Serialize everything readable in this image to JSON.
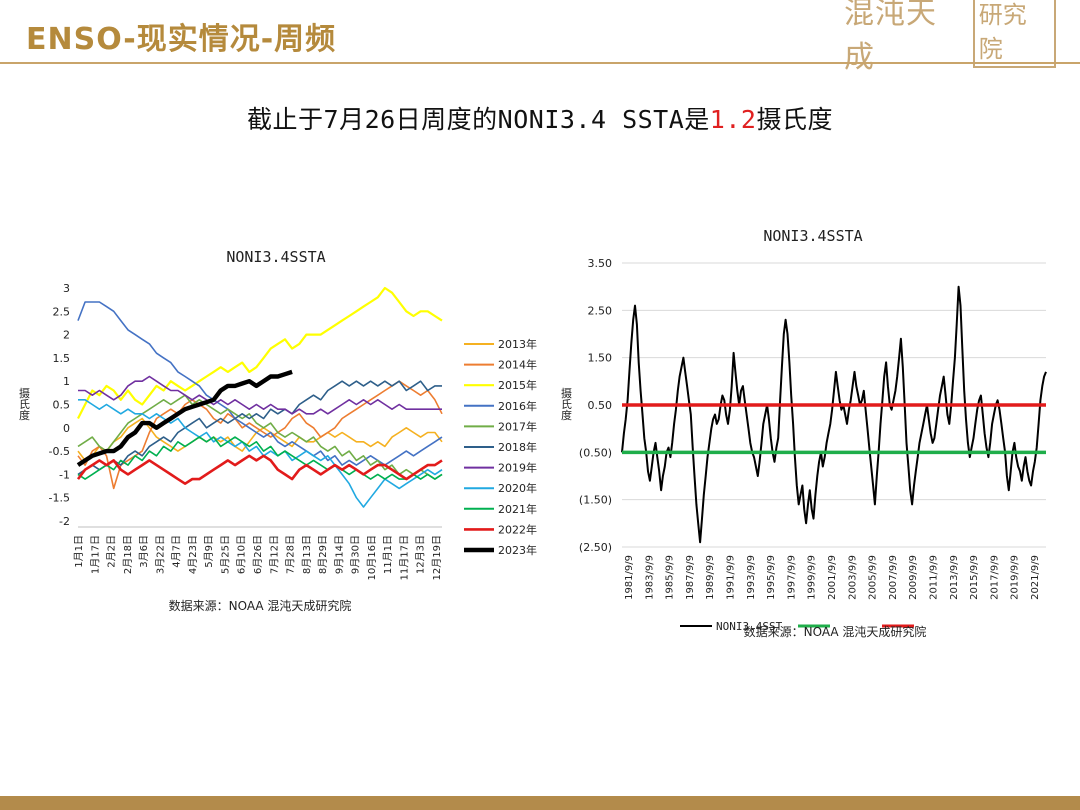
{
  "header": {
    "title": "ENSO-现实情况-周频",
    "logo_text": "混沌天成",
    "logo_box": "研究院",
    "colors": {
      "gold": "#b58a3c",
      "line": "#c9a46a"
    }
  },
  "headline": {
    "before": "截止于7月26日周度的NONI3.4 SSTA是",
    "value": "1.2",
    "after": "摄氏度"
  },
  "chart_data": [
    {
      "type": "line",
      "title": "NONI3.4SSTA",
      "ylabel": "摄氏度",
      "ylim": [
        -2,
        3
      ],
      "yticks": [
        "3",
        "2.5",
        "2",
        "1.5",
        "1",
        "0.5",
        "0",
        "-0.5",
        "-1",
        "-1.5",
        "-2"
      ],
      "xticks": [
        "1月1日",
        "1月17日",
        "2月2日",
        "2月18日",
        "3月6日",
        "3月22日",
        "4月7日",
        "4月23日",
        "5月9日",
        "5月25日",
        "6月10日",
        "6月26日",
        "7月12日",
        "7月28日",
        "8月13日",
        "8月29日",
        "9月14日",
        "9月30日",
        "10月16日",
        "11月1日",
        "11月17日",
        "12月3日",
        "12月19日"
      ],
      "source": "数据来源：NOAA 混沌天成研究院",
      "legend_position": "right",
      "grid": false,
      "series": [
        {
          "name": "2013年",
          "color": "#f5b121",
          "width": 1.6,
          "values": [
            -0.5,
            -0.7,
            -0.6,
            -0.4,
            -0.5,
            -0.3,
            -0.2,
            0,
            0.1,
            0.2,
            0,
            -0.2,
            -0.3,
            -0.4,
            -0.5,
            -0.4,
            -0.3,
            -0.2,
            -0.3,
            -0.2,
            -0.3,
            -0.2,
            -0.4,
            -0.5,
            -0.3,
            -0.1,
            0,
            -0.1,
            -0.2,
            -0.3,
            -0.4,
            -0.2,
            -0.3,
            -0.3,
            -0.2,
            -0.1,
            -0.2,
            -0.1,
            -0.2,
            -0.3,
            -0.3,
            -0.4,
            -0.3,
            -0.4,
            -0.2,
            -0.1,
            0,
            -0.1,
            -0.2,
            -0.1,
            -0.1,
            -0.3
          ]
        },
        {
          "name": "2014年",
          "color": "#ed7d31",
          "width": 1.6,
          "values": [
            -0.6,
            -0.8,
            -0.5,
            -0.4,
            -0.6,
            -1.3,
            -0.8,
            -0.7,
            -0.6,
            -0.5,
            -0.1,
            0.2,
            0.3,
            0.4,
            0.3,
            0.5,
            0.6,
            0.5,
            0.4,
            0.2,
            0.1,
            0.3,
            0.2,
            0,
            0.1,
            0,
            -0.1,
            -0.2,
            -0.1,
            0,
            0.2,
            0.3,
            0.1,
            0,
            -0.2,
            -0.1,
            0,
            0.2,
            0.3,
            0.4,
            0.5,
            0.6,
            0.7,
            0.8,
            0.9,
            1,
            0.9,
            0.8,
            0.7,
            0.8,
            0.6,
            0.3
          ]
        },
        {
          "name": "2015年",
          "color": "#ffff00",
          "width": 2.2,
          "values": [
            0.2,
            0.5,
            0.8,
            0.7,
            0.9,
            0.8,
            0.6,
            0.8,
            0.6,
            0.5,
            0.7,
            0.9,
            0.8,
            1,
            0.9,
            0.8,
            0.9,
            1,
            1.1,
            1.2,
            1.3,
            1.2,
            1.3,
            1.4,
            1.2,
            1.3,
            1.5,
            1.7,
            1.8,
            1.9,
            1.7,
            1.8,
            2,
            2,
            2,
            2.1,
            2.2,
            2.3,
            2.4,
            2.5,
            2.6,
            2.7,
            2.8,
            3,
            2.9,
            2.7,
            2.5,
            2.4,
            2.5,
            2.5,
            2.4,
            2.3
          ]
        },
        {
          "name": "2016年",
          "color": "#4472c4",
          "width": 1.6,
          "values": [
            2.3,
            2.7,
            2.7,
            2.7,
            2.6,
            2.5,
            2.3,
            2.1,
            2,
            1.9,
            1.8,
            1.6,
            1.5,
            1.4,
            1.2,
            1.1,
            1,
            0.9,
            0.7,
            0.6,
            0.5,
            0.4,
            0.2,
            0.1,
            0,
            -0.1,
            -0.2,
            -0.1,
            -0.3,
            -0.4,
            -0.3,
            -0.4,
            -0.5,
            -0.6,
            -0.5,
            -0.7,
            -0.6,
            -0.8,
            -0.7,
            -0.8,
            -0.7,
            -0.6,
            -0.7,
            -0.8,
            -0.7,
            -0.6,
            -0.5,
            -0.6,
            -0.5,
            -0.4,
            -0.3,
            -0.2
          ]
        },
        {
          "name": "2017年",
          "color": "#70ad47",
          "width": 1.6,
          "values": [
            -0.4,
            -0.3,
            -0.2,
            -0.4,
            -0.5,
            -0.3,
            -0.1,
            0.1,
            0.2,
            0.3,
            0.4,
            0.5,
            0.6,
            0.5,
            0.6,
            0.7,
            0.5,
            0.6,
            0.5,
            0.4,
            0.3,
            0.4,
            0.3,
            0.2,
            0.3,
            0.1,
            0,
            0.1,
            -0.1,
            -0.2,
            -0.1,
            -0.2,
            -0.3,
            -0.2,
            -0.4,
            -0.5,
            -0.4,
            -0.6,
            -0.5,
            -0.7,
            -0.6,
            -0.8,
            -0.7,
            -0.9,
            -0.8,
            -1,
            -0.9,
            -1,
            -0.9,
            -1,
            -1.1,
            -1
          ]
        },
        {
          "name": "2018年",
          "color": "#2e5f8a",
          "width": 1.6,
          "values": [
            -1,
            -0.9,
            -0.8,
            -0.9,
            -0.8,
            -0.7,
            -0.8,
            -0.6,
            -0.5,
            -0.6,
            -0.4,
            -0.3,
            -0.2,
            -0.3,
            -0.1,
            0,
            0.1,
            0.2,
            0,
            0.1,
            0.2,
            0.1,
            0.2,
            0.3,
            0.2,
            0.3,
            0.2,
            0.4,
            0.3,
            0.4,
            0.3,
            0.5,
            0.6,
            0.7,
            0.6,
            0.8,
            0.9,
            1,
            0.9,
            1,
            0.9,
            1,
            0.9,
            1,
            0.9,
            1,
            0.8,
            0.9,
            1,
            0.8,
            0.9,
            0.9
          ]
        },
        {
          "name": "2019年",
          "color": "#7030a0",
          "width": 1.6,
          "values": [
            0.8,
            0.8,
            0.7,
            0.8,
            0.7,
            0.6,
            0.7,
            0.9,
            1,
            1,
            1.1,
            1,
            0.9,
            0.8,
            0.8,
            0.7,
            0.6,
            0.7,
            0.6,
            0.5,
            0.6,
            0.5,
            0.6,
            0.5,
            0.4,
            0.5,
            0.4,
            0.5,
            0.4,
            0.4,
            0.3,
            0.4,
            0.3,
            0.3,
            0.4,
            0.3,
            0.4,
            0.5,
            0.6,
            0.5,
            0.6,
            0.5,
            0.6,
            0.5,
            0.4,
            0.5,
            0.4,
            0.4,
            0.4,
            0.4,
            0.4,
            0.4
          ]
        },
        {
          "name": "2020年",
          "color": "#21a9e1",
          "width": 1.6,
          "values": [
            0.6,
            0.6,
            0.5,
            0.4,
            0.5,
            0.4,
            0.3,
            0.4,
            0.3,
            0.3,
            0.2,
            0.3,
            0.2,
            0.1,
            0.2,
            0,
            -0.1,
            -0.2,
            -0.1,
            -0.3,
            -0.2,
            -0.3,
            -0.4,
            -0.3,
            -0.5,
            -0.4,
            -0.6,
            -0.5,
            -0.6,
            -0.5,
            -0.7,
            -0.6,
            -0.5,
            -0.6,
            -0.7,
            -0.6,
            -0.8,
            -1,
            -1.2,
            -1.5,
            -1.7,
            -1.5,
            -1.3,
            -1.1,
            -1.2,
            -1.3,
            -1.2,
            -1.1,
            -1,
            -0.9,
            -1,
            -0.9
          ]
        },
        {
          "name": "2021年",
          "color": "#00b050",
          "width": 1.6,
          "values": [
            -1,
            -1.1,
            -1,
            -0.9,
            -0.8,
            -0.9,
            -0.7,
            -0.8,
            -0.6,
            -0.7,
            -0.5,
            -0.6,
            -0.4,
            -0.5,
            -0.3,
            -0.4,
            -0.3,
            -0.2,
            -0.3,
            -0.2,
            -0.4,
            -0.3,
            -0.2,
            -0.3,
            -0.4,
            -0.3,
            -0.5,
            -0.4,
            -0.6,
            -0.5,
            -0.6,
            -0.7,
            -0.8,
            -0.7,
            -0.8,
            -0.9,
            -0.8,
            -0.9,
            -1,
            -0.9,
            -1,
            -1.1,
            -1,
            -1.1,
            -1,
            -1.1,
            -1.1,
            -1,
            -1.1,
            -1,
            -1.1,
            -1
          ]
        },
        {
          "name": "2022年",
          "color": "#e21b1b",
          "width": 2.6,
          "values": [
            -1.1,
            -0.9,
            -0.8,
            -0.7,
            -0.8,
            -0.7,
            -0.9,
            -1,
            -0.9,
            -0.8,
            -0.7,
            -0.8,
            -0.9,
            -1,
            -1.1,
            -1.2,
            -1.1,
            -1.1,
            -1,
            -0.9,
            -0.8,
            -0.7,
            -0.8,
            -0.7,
            -0.6,
            -0.7,
            -0.6,
            -0.7,
            -0.9,
            -1,
            -1.1,
            -0.9,
            -0.8,
            -0.9,
            -1,
            -0.9,
            -0.8,
            -0.9,
            -0.8,
            -0.9,
            -1,
            -0.9,
            -0.8,
            -0.8,
            -0.9,
            -1,
            -1.1,
            -1,
            -0.9,
            -0.8,
            -0.8,
            -0.7
          ]
        },
        {
          "name": "2023年",
          "color": "#000000",
          "width": 4.4,
          "values": [
            -0.8,
            -0.7,
            -0.6,
            -0.55,
            -0.5,
            -0.5,
            -0.4,
            -0.2,
            -0.1,
            0.1,
            0.1,
            0,
            0.1,
            0.2,
            0.3,
            0.4,
            0.45,
            0.5,
            0.55,
            0.6,
            0.8,
            0.9,
            0.9,
            0.95,
            1,
            0.9,
            1,
            1.1,
            1.1,
            1.15,
            1.2
          ]
        }
      ]
    },
    {
      "type": "line",
      "title": "NONI3.4SSTA",
      "ylabel": "摄氏度",
      "ylim": [
        -2.5,
        3.5
      ],
      "yticks": [
        "3.50",
        "2.50",
        "1.50",
        "0.50",
        "(0.50)",
        "(1.50)",
        "(2.50)"
      ],
      "xticks": [
        "1981/9/9",
        "1983/9/9",
        "1985/9/9",
        "1987/9/9",
        "1989/9/9",
        "1991/9/9",
        "1993/9/9",
        "1995/9/9",
        "1997/9/9",
        "1999/9/9",
        "2001/9/9",
        "2003/9/9",
        "2005/9/9",
        "2007/9/9",
        "2009/9/9",
        "2011/9/9",
        "2013/9/9",
        "2015/9/9",
        "2017/9/9",
        "2019/9/9",
        "2021/9/9"
      ],
      "source": "数据来源：NOAA 混沌天成研究院",
      "legend_position": "bottom",
      "grid": true,
      "el_nino": 0.5,
      "la_nina": -0.5,
      "series": [
        {
          "name": "NONI3.4SST",
          "color": "#000000",
          "values": [
            -0.5,
            -0.1,
            0.2,
            0.6,
            1.2,
            1.8,
            2.3,
            2.6,
            2.2,
            1.4,
            0.8,
            0.3,
            -0.2,
            -0.5,
            -0.9,
            -1.1,
            -0.8,
            -0.5,
            -0.3,
            -0.6,
            -0.9,
            -1.3,
            -1.0,
            -0.8,
            -0.5,
            -0.4,
            -0.6,
            -0.3,
            0.1,
            0.4,
            0.8,
            1.1,
            1.3,
            1.5,
            1.2,
            0.9,
            0.6,
            0.3,
            -0.4,
            -1.0,
            -1.6,
            -2.0,
            -2.4,
            -1.9,
            -1.4,
            -1.0,
            -0.6,
            -0.3,
            0.0,
            0.2,
            0.3,
            0.1,
            0.2,
            0.5,
            0.7,
            0.6,
            0.3,
            0.1,
            0.4,
            0.9,
            1.6,
            1.2,
            0.8,
            0.5,
            0.8,
            0.9,
            0.6,
            0.3,
            0.0,
            -0.3,
            -0.5,
            -0.6,
            -0.8,
            -1.0,
            -0.7,
            -0.3,
            0.1,
            0.3,
            0.5,
            0.2,
            -0.2,
            -0.5,
            -0.7,
            -0.4,
            -0.2,
            0.6,
            1.3,
            2.0,
            2.3,
            2.0,
            1.4,
            0.7,
            0.1,
            -0.6,
            -1.2,
            -1.6,
            -1.4,
            -1.2,
            -1.7,
            -2.0,
            -1.6,
            -1.3,
            -1.7,
            -1.9,
            -1.4,
            -1.0,
            -0.7,
            -0.5,
            -0.8,
            -0.6,
            -0.3,
            -0.1,
            0.1,
            0.4,
            0.8,
            1.2,
            0.9,
            0.6,
            0.4,
            0.5,
            0.3,
            0.1,
            0.4,
            0.6,
            0.9,
            1.2,
            0.9,
            0.7,
            0.5,
            0.6,
            0.8,
            0.4,
            0.0,
            -0.4,
            -0.8,
            -1.2,
            -1.6,
            -1.0,
            -0.5,
            0.1,
            0.6,
            1.1,
            1.4,
            0.9,
            0.5,
            0.4,
            0.6,
            0.8,
            1.1,
            1.5,
            1.9,
            1.3,
            0.5,
            -0.3,
            -0.8,
            -1.3,
            -1.6,
            -1.2,
            -0.9,
            -0.6,
            -0.3,
            -0.1,
            0.1,
            0.3,
            0.5,
            0.2,
            -0.1,
            -0.3,
            -0.2,
            0.1,
            0.4,
            0.7,
            0.9,
            1.1,
            0.7,
            0.3,
            0.1,
            0.5,
            1.0,
            1.5,
            2.2,
            3.0,
            2.6,
            1.7,
            0.8,
            0.2,
            -0.3,
            -0.6,
            -0.4,
            -0.2,
            0.1,
            0.4,
            0.6,
            0.7,
            0.3,
            -0.1,
            -0.4,
            -0.6,
            -0.3,
            0.1,
            0.3,
            0.5,
            0.6,
            0.4,
            0.1,
            -0.2,
            -0.5,
            -1.0,
            -1.3,
            -0.9,
            -0.5,
            -0.3,
            -0.6,
            -0.8,
            -0.9,
            -1.1,
            -0.8,
            -0.6,
            -0.9,
            -1.1,
            -1.2,
            -0.9,
            -0.7,
            -0.4,
            0.1,
            0.6,
            0.9,
            1.1,
            1.2
          ]
        }
      ]
    }
  ]
}
